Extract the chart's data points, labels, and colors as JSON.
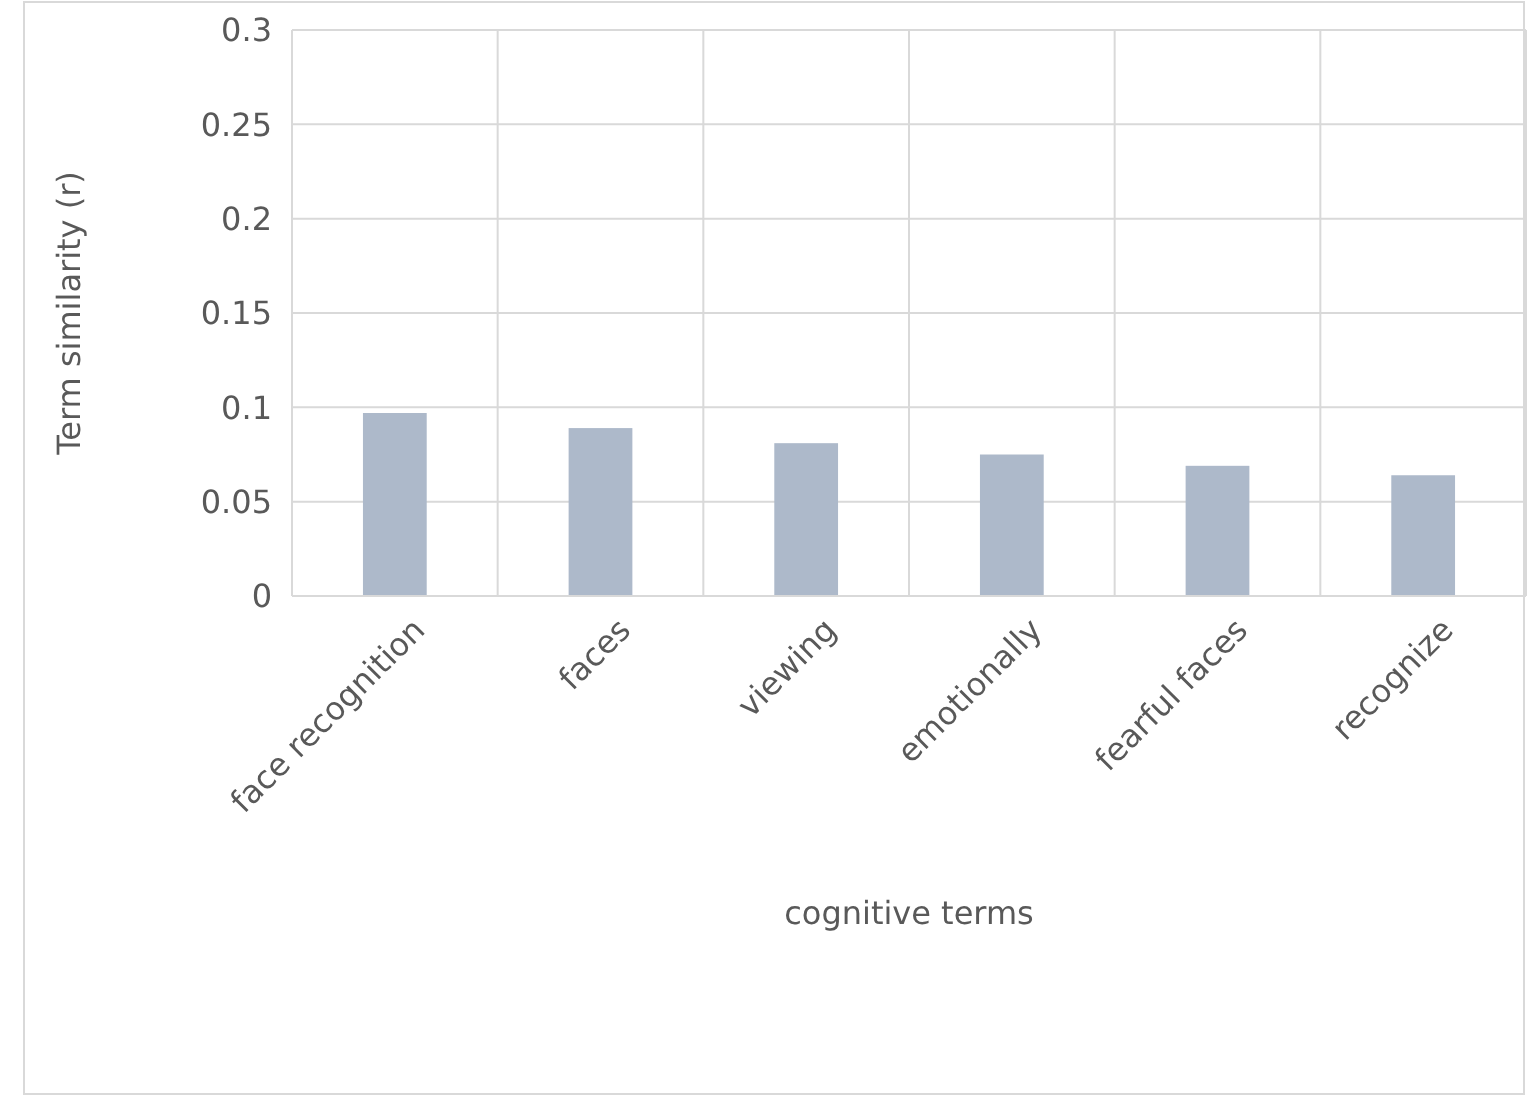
{
  "chart_data": {
    "type": "bar",
    "xlabel": "cognitive terms",
    "ylabel": "Term similarity (r)",
    "categories": [
      "face recognition",
      "faces",
      "viewing",
      "emotionally",
      "fearful faces",
      "recognize"
    ],
    "values": [
      0.097,
      0.089,
      0.081,
      0.075,
      0.069,
      0.064
    ],
    "color": "#adb9ca",
    "ylim": [
      0,
      0.3
    ],
    "yticks": [
      0,
      0.05,
      0.1,
      0.15,
      0.2,
      0.25,
      0.3
    ],
    "grid": true
  }
}
